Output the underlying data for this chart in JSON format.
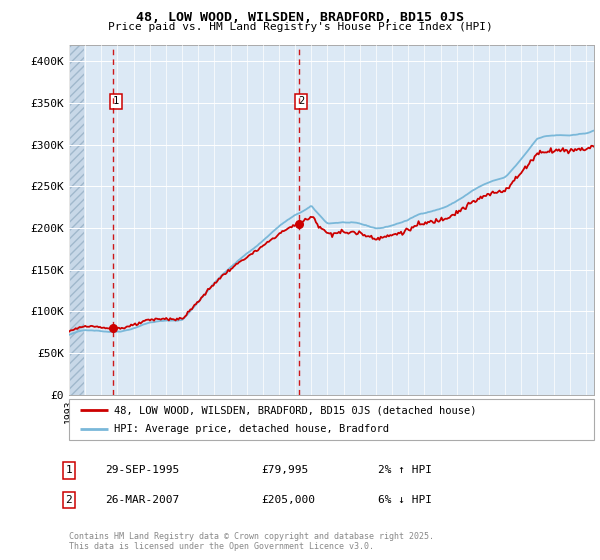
{
  "title1": "48, LOW WOOD, WILSDEN, BRADFORD, BD15 0JS",
  "title2": "Price paid vs. HM Land Registry's House Price Index (HPI)",
  "legend_label1": "48, LOW WOOD, WILSDEN, BRADFORD, BD15 0JS (detached house)",
  "legend_label2": "HPI: Average price, detached house, Bradford",
  "annotation1_date": "29-SEP-1995",
  "annotation1_price": "£79,995",
  "annotation1_hpi": "2% ↑ HPI",
  "annotation2_date": "26-MAR-2007",
  "annotation2_price": "£205,000",
  "annotation2_hpi": "6% ↓ HPI",
  "footnote": "Contains HM Land Registry data © Crown copyright and database right 2025.\nThis data is licensed under the Open Government Licence v3.0.",
  "sale1_year": 1995.75,
  "sale1_price": 79995,
  "sale2_year": 2007.23,
  "sale2_price": 205000,
  "bg_color": "#dce9f5",
  "hatch_bg_color": "#c8d8e8",
  "grid_color": "#ffffff",
  "hpi_line_color": "#7ab8d9",
  "price_line_color": "#cc0000",
  "vline_color": "#cc0000",
  "ylim": [
    0,
    420000
  ],
  "xlim_start": 1993.0,
  "xlim_end": 2025.5,
  "yticks": [
    0,
    50000,
    100000,
    150000,
    200000,
    250000,
    300000,
    350000,
    400000
  ],
  "ylabels": [
    "£0",
    "£50K",
    "£100K",
    "£150K",
    "£200K",
    "£250K",
    "£300K",
    "£350K",
    "£400K"
  ]
}
